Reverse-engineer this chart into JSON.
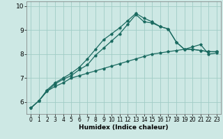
{
  "title": "",
  "xlabel": "Humidex (Indice chaleur)",
  "bg_color": "#cde8e4",
  "grid_color": "#a0ccc6",
  "line_color": "#1a6a60",
  "xlim": [
    -0.5,
    23.5
  ],
  "ylim": [
    5.5,
    10.2
  ],
  "yticks": [
    6,
    7,
    8,
    9,
    10
  ],
  "xticks": [
    0,
    1,
    2,
    3,
    4,
    5,
    6,
    7,
    8,
    9,
    10,
    11,
    12,
    13,
    14,
    15,
    16,
    17,
    18,
    19,
    20,
    21,
    22,
    23
  ],
  "series": [
    [
      5.75,
      6.05,
      6.45,
      6.65,
      6.8,
      7.0,
      7.1,
      7.2,
      7.3,
      7.4,
      7.5,
      7.6,
      7.7,
      7.8,
      7.9,
      8.0,
      8.05,
      8.1,
      8.15,
      8.2,
      8.3,
      8.4,
      8.0,
      8.05
    ],
    [
      5.75,
      6.05,
      6.45,
      6.75,
      6.95,
      7.1,
      7.35,
      7.55,
      7.95,
      8.25,
      8.55,
      8.85,
      9.25,
      9.65,
      9.35,
      9.3,
      9.15,
      9.05,
      8.5,
      8.2,
      8.2,
      8.15,
      8.1,
      8.1
    ],
    [
      5.75,
      6.05,
      6.5,
      6.8,
      7.0,
      7.2,
      7.45,
      7.8,
      8.2,
      8.6,
      8.85,
      9.1,
      9.4,
      9.7,
      9.5,
      9.35,
      9.15,
      9.05,
      8.5,
      8.2,
      8.2,
      8.15,
      8.1,
      8.1
    ]
  ]
}
